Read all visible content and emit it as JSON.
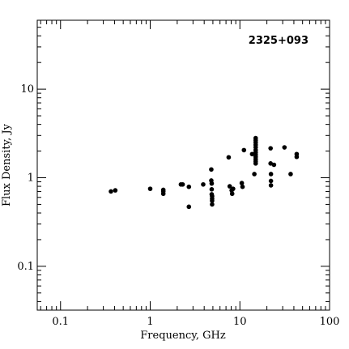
{
  "chart_data": {
    "type": "scatter",
    "title": "2325+093",
    "xlabel": "Frequency, GHz",
    "ylabel": "Flux Density, Jy",
    "x_scale": "log",
    "y_scale": "log",
    "xlim": [
      0.055,
      100
    ],
    "ylim": [
      0.032,
      60
    ],
    "x_ticks": [
      {
        "value": 0.1,
        "label": "0.1"
      },
      {
        "value": 1,
        "label": "1"
      },
      {
        "value": 10,
        "label": "10"
      },
      {
        "value": 100,
        "label": "100"
      }
    ],
    "y_ticks": [
      {
        "value": 0.1,
        "label": "0.1"
      },
      {
        "value": 1,
        "label": "1"
      },
      {
        "value": 10,
        "label": "10"
      }
    ],
    "grid": false,
    "marker_color": "#000000",
    "series": [
      {
        "points": [
          [
            0.365,
            0.7
          ],
          [
            0.408,
            0.72
          ],
          [
            1.0,
            0.75
          ],
          [
            1.4,
            0.66
          ],
          [
            1.4,
            0.7
          ],
          [
            1.4,
            0.73
          ],
          [
            2.2,
            0.84
          ],
          [
            2.3,
            0.84
          ],
          [
            2.7,
            0.47
          ],
          [
            2.7,
            0.79
          ],
          [
            3.9,
            0.84
          ],
          [
            4.8,
            1.24
          ],
          [
            4.8,
            0.93
          ],
          [
            4.85,
            0.86
          ],
          [
            4.85,
            0.74
          ],
          [
            4.85,
            0.65
          ],
          [
            4.9,
            0.62
          ],
          [
            4.9,
            0.58
          ],
          [
            4.9,
            0.55
          ],
          [
            4.9,
            0.5
          ],
          [
            7.5,
            1.7
          ],
          [
            7.7,
            0.8
          ],
          [
            8.1,
            0.72
          ],
          [
            8.2,
            0.66
          ],
          [
            8.4,
            0.75
          ],
          [
            10.5,
            0.87
          ],
          [
            10.7,
            0.79
          ],
          [
            11.1,
            2.05
          ],
          [
            13.7,
            1.85
          ],
          [
            14.5,
            1.1
          ],
          [
            15.0,
            2.8
          ],
          [
            15.0,
            2.65
          ],
          [
            15.0,
            2.5
          ],
          [
            15.0,
            2.35
          ],
          [
            15.0,
            2.2
          ],
          [
            15.0,
            2.05
          ],
          [
            15.0,
            1.93
          ],
          [
            15.0,
            1.82
          ],
          [
            15.0,
            1.72
          ],
          [
            15.0,
            1.62
          ],
          [
            15.0,
            1.53
          ],
          [
            15.0,
            1.45
          ],
          [
            22.0,
            2.15
          ],
          [
            22.0,
            1.45
          ],
          [
            22.2,
            1.1
          ],
          [
            22.2,
            0.92
          ],
          [
            22.2,
            0.82
          ],
          [
            24.0,
            1.4
          ],
          [
            31.4,
            2.2
          ],
          [
            36.8,
            1.1
          ],
          [
            43.0,
            1.85
          ],
          [
            43.0,
            1.72
          ]
        ]
      }
    ]
  }
}
